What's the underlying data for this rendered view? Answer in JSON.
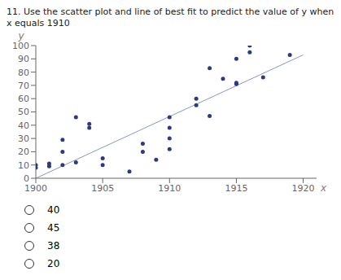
{
  "chart_data": {
    "type": "scatter",
    "title": "11. Use the scatter plot and line of best fit to predict the value of y when x equals 1910",
    "xlabel": "x",
    "ylabel": "y",
    "xlim": [
      1900,
      1921
    ],
    "ylim": [
      0,
      100
    ],
    "xticks": [
      1900,
      1905,
      1910,
      1915,
      1920
    ],
    "yticks": [
      0,
      10,
      20,
      30,
      40,
      50,
      60,
      70,
      80,
      90,
      100
    ],
    "grid": false,
    "series": [
      {
        "type": "scatter",
        "color": "#2e3a7c",
        "x": [
          1900,
          1900,
          1901,
          1901,
          1902,
          1902,
          1902,
          1903,
          1903,
          1904,
          1904,
          1905,
          1905,
          1907,
          1908,
          1908,
          1909,
          1910,
          1910,
          1910,
          1910,
          1912,
          1912,
          1913,
          1913,
          1914,
          1915,
          1915,
          1915,
          1916,
          1916,
          1917,
          1919
        ],
        "values": [
          8,
          10,
          9,
          11,
          29,
          20,
          10,
          46,
          12,
          38,
          41,
          10,
          15,
          5,
          20,
          26,
          14,
          22,
          38,
          46,
          30,
          60,
          55,
          83,
          47,
          75,
          90,
          71,
          72,
          100,
          95,
          76,
          93
        ]
      },
      {
        "type": "line",
        "color": "#8899bb",
        "x": [
          1900,
          1920
        ],
        "values": [
          0,
          93
        ]
      }
    ],
    "annotations": [
      "40",
      "45",
      "38",
      "20"
    ]
  }
}
